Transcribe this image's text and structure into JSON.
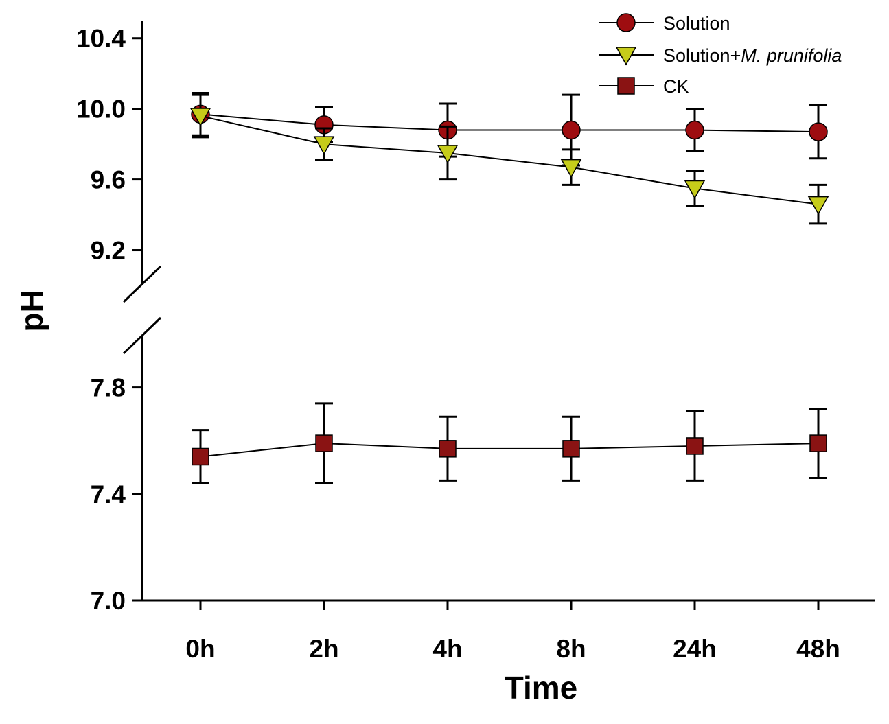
{
  "chart_data": {
    "type": "line",
    "title": "",
    "xlabel": "Time",
    "ylabel": "pH",
    "categories": [
      "0h",
      "2h",
      "4h",
      "8h",
      "24h",
      "48h"
    ],
    "y_axis_break": true,
    "y_segments": [
      {
        "ylim": [
          7.0,
          8.0
        ],
        "ticks": [
          7.0,
          7.4,
          7.8
        ],
        "tick_labels": [
          "7.0",
          "7.4",
          "7.8"
        ]
      },
      {
        "ylim": [
          9.0,
          10.5
        ],
        "ticks": [
          9.2,
          9.6,
          10.0,
          10.4
        ],
        "tick_labels": [
          "9.2",
          "9.6",
          "10.0",
          "10.4"
        ]
      }
    ],
    "series": [
      {
        "name": "Solution",
        "legend_main": "Solution",
        "legend_italic": "",
        "marker": "circle",
        "color": "#9e0d10",
        "values": [
          9.97,
          9.91,
          9.88,
          9.88,
          9.88,
          9.87
        ],
        "errors": [
          0.12,
          0.1,
          0.15,
          0.2,
          0.12,
          0.15
        ]
      },
      {
        "name": "Solution+M. prunifolia",
        "legend_main": "Solution+",
        "legend_italic": "M. prunifolia",
        "marker": "triangle-down",
        "color": "#c6cc1a",
        "values": [
          9.96,
          9.8,
          9.75,
          9.67,
          9.55,
          9.46
        ],
        "errors": [
          0.12,
          0.09,
          0.15,
          0.1,
          0.1,
          0.11
        ]
      },
      {
        "name": "CK",
        "legend_main": "CK",
        "legend_italic": "",
        "marker": "square",
        "color": "#8a1313",
        "values": [
          7.54,
          7.59,
          7.57,
          7.57,
          7.58,
          7.59
        ],
        "errors": [
          0.1,
          0.15,
          0.12,
          0.12,
          0.13,
          0.13
        ]
      }
    ],
    "legend": "top-right"
  }
}
